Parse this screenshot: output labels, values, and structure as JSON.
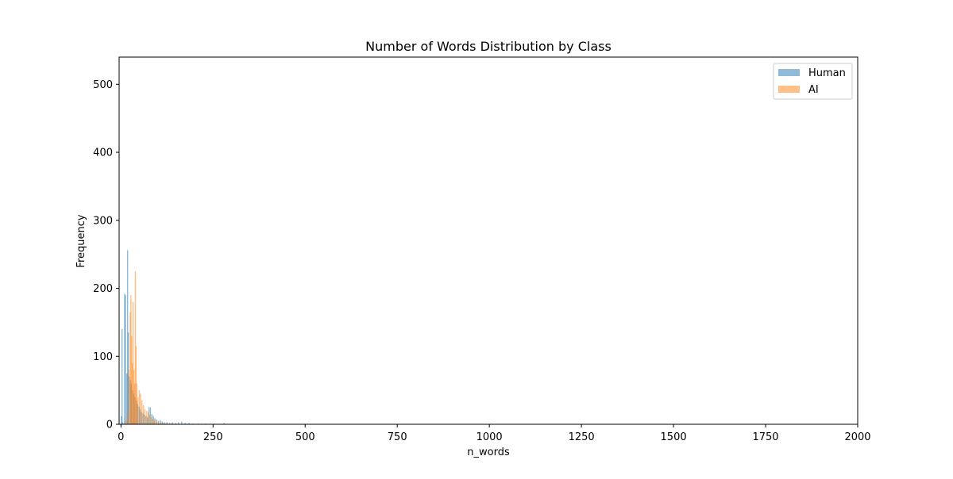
{
  "chart_data": {
    "type": "bar",
    "title": "Number of Words Distribution by Class",
    "xlabel": "n_words",
    "ylabel": "Frequency",
    "xlim": [
      -5,
      2000
    ],
    "ylim": [
      0,
      540
    ],
    "xticks": [
      0,
      250,
      500,
      750,
      1000,
      1250,
      1500,
      1750,
      2000
    ],
    "yticks": [
      0,
      100,
      200,
      300,
      400,
      500
    ],
    "legend": {
      "position": "top-right"
    },
    "series": [
      {
        "name": "Human",
        "color": "#1f77b4",
        "alpha": 0.5,
        "points": [
          {
            "x": 1,
            "y": 12
          },
          {
            "x": 3,
            "y": 140
          },
          {
            "x": 5,
            "y": 3
          },
          {
            "x": 10,
            "y": 192
          },
          {
            "x": 12,
            "y": 190
          },
          {
            "x": 16,
            "y": 75
          },
          {
            "x": 18,
            "y": 256
          },
          {
            "x": 20,
            "y": 135
          },
          {
            "x": 22,
            "y": 70
          },
          {
            "x": 26,
            "y": 65
          },
          {
            "x": 28,
            "y": 60
          },
          {
            "x": 32,
            "y": 50
          },
          {
            "x": 35,
            "y": 45
          },
          {
            "x": 38,
            "y": 40
          },
          {
            "x": 42,
            "y": 35
          },
          {
            "x": 45,
            "y": 30
          },
          {
            "x": 49,
            "y": 26
          },
          {
            "x": 52,
            "y": 22
          },
          {
            "x": 56,
            "y": 18
          },
          {
            "x": 60,
            "y": 16
          },
          {
            "x": 64,
            "y": 14
          },
          {
            "x": 68,
            "y": 12
          },
          {
            "x": 72,
            "y": 10
          },
          {
            "x": 76,
            "y": 25
          },
          {
            "x": 80,
            "y": 25
          },
          {
            "x": 84,
            "y": 15
          },
          {
            "x": 88,
            "y": 12
          },
          {
            "x": 92,
            "y": 9
          },
          {
            "x": 97,
            "y": 7
          },
          {
            "x": 102,
            "y": 5
          },
          {
            "x": 107,
            "y": 6
          },
          {
            "x": 112,
            "y": 4
          },
          {
            "x": 118,
            "y": 3
          },
          {
            "x": 125,
            "y": 3
          },
          {
            "x": 132,
            "y": 2
          },
          {
            "x": 140,
            "y": 3
          },
          {
            "x": 148,
            "y": 2
          },
          {
            "x": 156,
            "y": 3
          },
          {
            "x": 165,
            "y": 4
          },
          {
            "x": 174,
            "y": 2
          },
          {
            "x": 185,
            "y": 2
          },
          {
            "x": 195,
            "y": 1
          },
          {
            "x": 210,
            "y": 1
          },
          {
            "x": 230,
            "y": 1
          },
          {
            "x": 255,
            "y": 1
          },
          {
            "x": 280,
            "y": 2
          }
        ]
      },
      {
        "name": "AI",
        "color": "#ff7f0e",
        "alpha": 0.5,
        "points": [
          {
            "x": 9,
            "y": 2
          },
          {
            "x": 13,
            "y": 5
          },
          {
            "x": 17,
            "y": 15
          },
          {
            "x": 21,
            "y": 80
          },
          {
            "x": 25,
            "y": 165
          },
          {
            "x": 27,
            "y": 190
          },
          {
            "x": 29,
            "y": 130
          },
          {
            "x": 31,
            "y": 90
          },
          {
            "x": 33,
            "y": 180
          },
          {
            "x": 35,
            "y": 80
          },
          {
            "x": 37,
            "y": 60
          },
          {
            "x": 39,
            "y": 225
          },
          {
            "x": 41,
            "y": 115
          },
          {
            "x": 43,
            "y": 60
          },
          {
            "x": 46,
            "y": 40
          },
          {
            "x": 50,
            "y": 50
          },
          {
            "x": 53,
            "y": 45
          },
          {
            "x": 57,
            "y": 35
          },
          {
            "x": 61,
            "y": 28
          },
          {
            "x": 65,
            "y": 22
          },
          {
            "x": 70,
            "y": 20
          },
          {
            "x": 74,
            "y": 18
          },
          {
            "x": 78,
            "y": 14
          },
          {
            "x": 83,
            "y": 10
          },
          {
            "x": 87,
            "y": 8
          },
          {
            "x": 91,
            "y": 6
          },
          {
            "x": 96,
            "y": 5
          },
          {
            "x": 101,
            "y": 4
          },
          {
            "x": 108,
            "y": 3
          },
          {
            "x": 115,
            "y": 2
          },
          {
            "x": 123,
            "y": 2
          },
          {
            "x": 135,
            "y": 1
          }
        ]
      }
    ]
  }
}
